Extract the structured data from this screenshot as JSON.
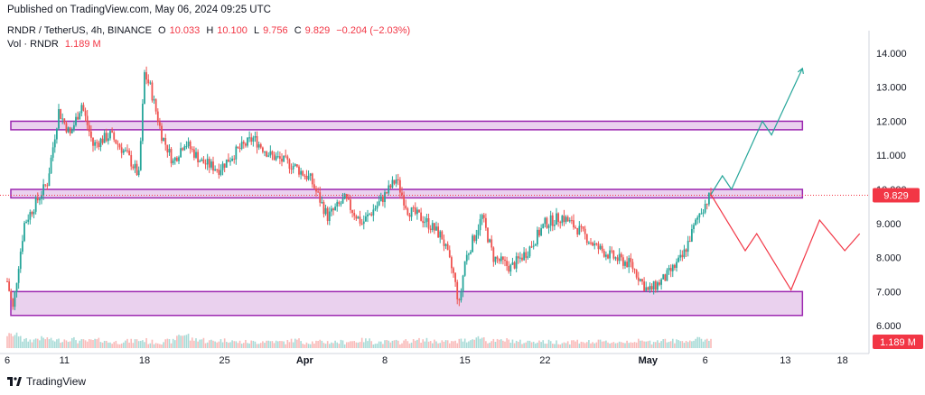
{
  "header": {
    "published": "Published on TradingView.com, May 06, 2024 09:25 UTC"
  },
  "legend": {
    "symbol": "RNDR / TetherUS, 4h, BINANCE",
    "open_label": "O",
    "open": "10.033",
    "high_label": "H",
    "high": "10.100",
    "low_label": "L",
    "low": "9.756",
    "close_label": "C",
    "close": "9.829",
    "change": "−0.204 (−2.03%)",
    "vol_label": "Vol · RNDR",
    "vol": "1.189 M"
  },
  "brand": {
    "name": "TradingView"
  },
  "colors": {
    "up": "#26a69a",
    "down": "#ef5350",
    "zone": "#e1bee7",
    "zone_border": "#9c27b0",
    "projection_up": "#26a69a",
    "projection_down": "#f23645",
    "price_tag": "#f23645"
  },
  "chart_data": {
    "type": "candlestick",
    "symbol": "RNDR / TetherUS",
    "interval": "4h",
    "ylim": [
      5.5,
      14.5
    ],
    "y_ticks": [
      "14.000",
      "13.000",
      "12.000",
      "11.000",
      "10.000",
      "9.000",
      "8.000",
      "7.000",
      "6.000"
    ],
    "x_ticks": [
      "6",
      "11",
      "18",
      "25",
      "Apr",
      "8",
      "15",
      "22",
      "May",
      "6",
      "13",
      "18"
    ],
    "x_tick_days": [
      0,
      5,
      12,
      19,
      26,
      33,
      40,
      47,
      56,
      61,
      68,
      73
    ],
    "x_range_days": [
      0,
      75
    ],
    "last_price": "9.829",
    "last_volume": "1.189 M",
    "price_path": [
      {
        "day": 0,
        "price": 7.3
      },
      {
        "day": 0.5,
        "price": 6.5
      },
      {
        "day": 1,
        "price": 7.8
      },
      {
        "day": 1.5,
        "price": 9.0
      },
      {
        "day": 2.5,
        "price": 9.6
      },
      {
        "day": 3.5,
        "price": 10.2
      },
      {
        "day": 4.5,
        "price": 12.3
      },
      {
        "day": 5.5,
        "price": 11.6
      },
      {
        "day": 6.5,
        "price": 12.5
      },
      {
        "day": 7.5,
        "price": 11.3
      },
      {
        "day": 9,
        "price": 11.6
      },
      {
        "day": 10.5,
        "price": 11.0
      },
      {
        "day": 11.5,
        "price": 10.4
      },
      {
        "day": 12,
        "price": 13.4
      },
      {
        "day": 12.5,
        "price": 13.0
      },
      {
        "day": 13.5,
        "price": 11.6
      },
      {
        "day": 14.5,
        "price": 10.8
      },
      {
        "day": 15.5,
        "price": 11.4
      },
      {
        "day": 17,
        "price": 10.8
      },
      {
        "day": 18.5,
        "price": 10.6
      },
      {
        "day": 20,
        "price": 11.1
      },
      {
        "day": 21.5,
        "price": 11.5
      },
      {
        "day": 23,
        "price": 11.0
      },
      {
        "day": 25,
        "price": 10.7
      },
      {
        "day": 26.5,
        "price": 10.3
      },
      {
        "day": 28,
        "price": 9.2
      },
      {
        "day": 29.5,
        "price": 9.7
      },
      {
        "day": 31,
        "price": 9.0
      },
      {
        "day": 32.5,
        "price": 9.6
      },
      {
        "day": 34,
        "price": 10.3
      },
      {
        "day": 35,
        "price": 9.4
      },
      {
        "day": 36.5,
        "price": 9.1
      },
      {
        "day": 38,
        "price": 8.6
      },
      {
        "day": 39,
        "price": 7.5
      },
      {
        "day": 39.5,
        "price": 6.6
      },
      {
        "day": 40,
        "price": 7.9
      },
      {
        "day": 41.5,
        "price": 9.2
      },
      {
        "day": 42.5,
        "price": 8.0
      },
      {
        "day": 44,
        "price": 7.7
      },
      {
        "day": 45.5,
        "price": 8.2
      },
      {
        "day": 47,
        "price": 9.0
      },
      {
        "day": 48.5,
        "price": 9.2
      },
      {
        "day": 50,
        "price": 8.8
      },
      {
        "day": 51.5,
        "price": 8.3
      },
      {
        "day": 53,
        "price": 8.0
      },
      {
        "day": 54.5,
        "price": 7.8
      },
      {
        "day": 56,
        "price": 7.0
      },
      {
        "day": 57.5,
        "price": 7.4
      },
      {
        "day": 59,
        "price": 8.0
      },
      {
        "day": 60.5,
        "price": 9.3
      },
      {
        "day": 61.5,
        "price": 9.85
      }
    ],
    "volume_path": [
      0.6,
      0.3,
      0.4,
      0.3,
      0.35,
      0.25,
      0.3,
      0.2,
      0.25,
      0.3,
      0.2,
      0.25,
      0.6,
      0.35,
      0.25,
      0.3,
      0.2,
      0.2,
      0.25,
      0.2,
      0.3,
      0.2,
      0.2,
      0.2,
      0.25,
      0.3,
      0.2,
      0.2,
      0.25,
      0.3,
      0.25,
      0.2,
      0.3,
      0.45,
      0.25,
      0.3,
      0.2,
      0.25,
      0.2,
      0.2,
      0.25,
      0.2,
      0.2,
      0.2,
      0.25,
      0.2,
      0.3,
      0.25,
      0.3,
      0.35,
      0.3
    ],
    "zones": [
      {
        "low": 11.75,
        "high": 12.0
      },
      {
        "low": 9.75,
        "high": 10.0
      },
      {
        "low": 6.3,
        "high": 7.0
      }
    ],
    "projections": [
      {
        "direction": "up",
        "path": [
          {
            "day": 61.5,
            "price": 9.85
          },
          {
            "day": 62.5,
            "price": 10.4
          },
          {
            "day": 63.3,
            "price": 10.0
          },
          {
            "day": 66,
            "price": 12.0
          },
          {
            "day": 66.8,
            "price": 11.6
          },
          {
            "day": 69.5,
            "price": 13.55
          }
        ]
      },
      {
        "direction": "down",
        "path": [
          {
            "day": 61.5,
            "price": 9.85
          },
          {
            "day": 64.5,
            "price": 8.2
          },
          {
            "day": 65.5,
            "price": 8.7
          },
          {
            "day": 68.5,
            "price": 7.05
          },
          {
            "day": 71,
            "price": 9.1
          },
          {
            "day": 73.2,
            "price": 8.2
          },
          {
            "day": 74.5,
            "price": 8.7
          }
        ]
      }
    ]
  }
}
